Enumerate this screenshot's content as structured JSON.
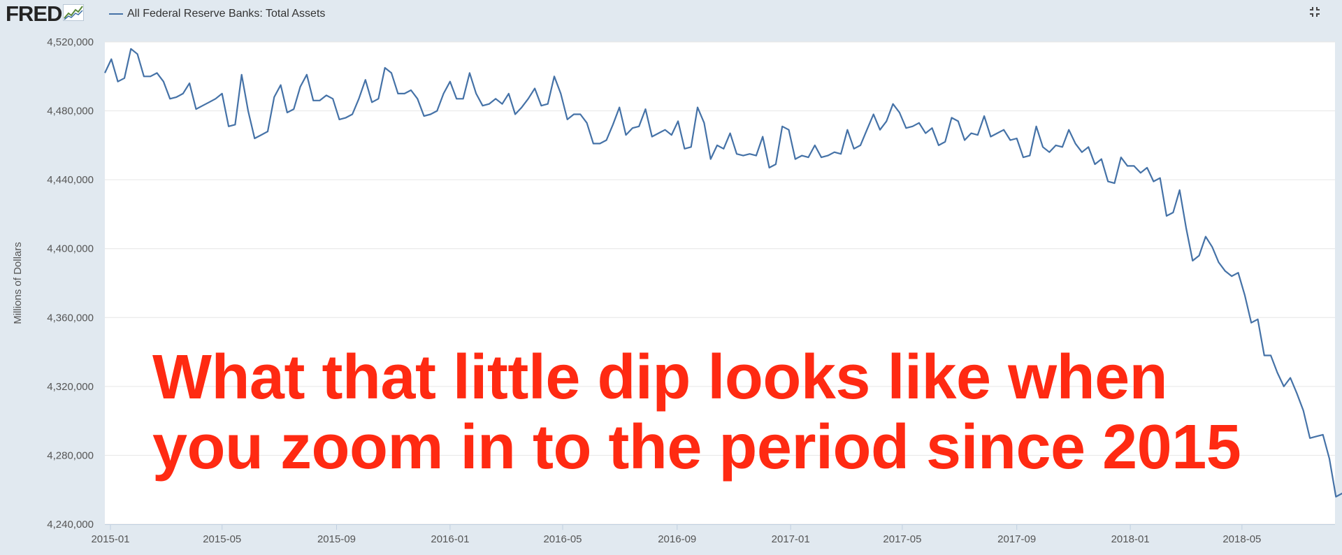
{
  "header": {
    "logo_text": "FRED",
    "logo_icon": "chart-line-icon",
    "legend_label": "All Federal Reserve Banks: Total Assets",
    "expand_icon": "collapse-arrows-icon"
  },
  "overlay": {
    "line1": "What that little dip looks like when",
    "line2": "you zoom in to the period since 2015"
  },
  "colors": {
    "series": "#4572a7",
    "overlay_text": "#ff2a12",
    "background": "#e1e9f0",
    "plot_background": "#ffffff",
    "grid": "#e6e6e6"
  },
  "chart_data": {
    "type": "line",
    "title": "",
    "xlabel": "",
    "ylabel": "Millions of Dollars",
    "ylim": [
      4240000,
      4520000
    ],
    "yticks": [
      4240000,
      4280000,
      4320000,
      4360000,
      4400000,
      4440000,
      4480000,
      4520000
    ],
    "ytick_labels": [
      "4,240,000",
      "4,280,000",
      "4,320,000",
      "4,360,000",
      "4,400,000",
      "4,440,000",
      "4,480,000",
      "4,520,000"
    ],
    "xticks": [
      "2015-01-01",
      "2015-05-01",
      "2015-09-01",
      "2016-01-01",
      "2016-05-01",
      "2016-09-01",
      "2017-01-01",
      "2017-05-01",
      "2017-09-01",
      "2018-01-01",
      "2018-05-01"
    ],
    "xtick_labels": [
      "2015-01",
      "2015-05",
      "2015-09",
      "2016-01",
      "2016-05",
      "2016-09",
      "2017-01",
      "2017-05",
      "2017-09",
      "2018-01",
      "2018-05"
    ],
    "xlim": [
      "2014-12-26",
      "2018-08-09"
    ],
    "grid": true,
    "legend": "top-left",
    "series": [
      {
        "name": "All Federal Reserve Banks: Total Assets",
        "frequency": "weekly",
        "start": "2014-12-26",
        "values": [
          4502000,
          4510000,
          4497000,
          4499000,
          4516000,
          4513000,
          4500000,
          4500000,
          4502000,
          4497000,
          4487000,
          4488000,
          4490000,
          4496000,
          4481000,
          4483000,
          4485000,
          4487000,
          4490000,
          4471000,
          4472000,
          4501000,
          4480000,
          4464000,
          4466000,
          4468000,
          4488000,
          4495000,
          4479000,
          4481000,
          4494000,
          4501000,
          4486000,
          4486000,
          4489000,
          4487000,
          4475000,
          4476000,
          4478000,
          4487000,
          4498000,
          4485000,
          4487000,
          4505000,
          4502000,
          4490000,
          4490000,
          4492000,
          4487000,
          4477000,
          4478000,
          4480000,
          4490000,
          4497000,
          4487000,
          4487000,
          4502000,
          4490000,
          4483000,
          4484000,
          4487000,
          4484000,
          4490000,
          4478000,
          4482000,
          4487000,
          4493000,
          4483000,
          4484000,
          4500000,
          4490000,
          4475000,
          4478000,
          4478000,
          4473000,
          4461000,
          4461000,
          4463000,
          4472000,
          4482000,
          4466000,
          4470000,
          4471000,
          4481000,
          4465000,
          4467000,
          4469000,
          4466000,
          4474000,
          4458000,
          4459000,
          4482000,
          4473000,
          4452000,
          4460000,
          4458000,
          4467000,
          4455000,
          4454000,
          4455000,
          4454000,
          4465000,
          4447000,
          4449000,
          4471000,
          4469000,
          4452000,
          4454000,
          4453000,
          4460000,
          4453000,
          4454000,
          4456000,
          4455000,
          4469000,
          4458000,
          4460000,
          4469000,
          4478000,
          4469000,
          4474000,
          4484000,
          4479000,
          4470000,
          4471000,
          4473000,
          4467000,
          4470000,
          4460000,
          4462000,
          4476000,
          4474000,
          4463000,
          4467000,
          4466000,
          4477000,
          4465000,
          4467000,
          4469000,
          4463000,
          4464000,
          4453000,
          4454000,
          4471000,
          4459000,
          4456000,
          4460000,
          4459000,
          4469000,
          4461000,
          4456000,
          4459000,
          4449000,
          4452000,
          4439000,
          4438000,
          4453000,
          4448000,
          4448000,
          4444000,
          4447000,
          4439000,
          4441000,
          4419000,
          4421000,
          4434000,
          4412000,
          4393000,
          4396000,
          4407000,
          4401000,
          4392000,
          4387000,
          4384000,
          4386000,
          4373000,
          4357000,
          4359000,
          4338000,
          4338000,
          4328000,
          4320000,
          4325000,
          4316000,
          4306000,
          4290000,
          4291000,
          4292000,
          4278000,
          4256000,
          4258000
        ]
      }
    ]
  }
}
